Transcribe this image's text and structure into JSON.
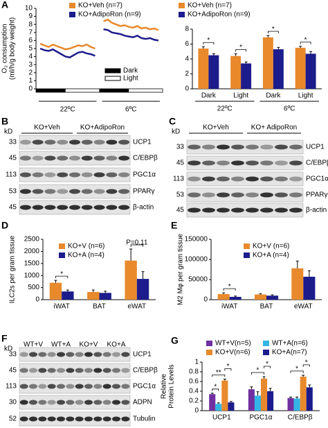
{
  "chart_data": [
    {
      "panel": "A",
      "type": "line",
      "ylabel": [
        "O₂ consumption",
        "(ml/h/g body weight)"
      ],
      "xlim": [
        0,
        30
      ],
      "ylim": [
        0,
        10
      ],
      "yticks": [
        0,
        1,
        2,
        3,
        4,
        5,
        6,
        7,
        8,
        9,
        10
      ],
      "x": [
        1,
        2,
        3,
        4,
        5,
        6,
        7,
        8,
        9,
        10,
        11,
        12,
        13,
        14,
        15,
        16,
        17,
        18,
        19,
        20,
        21,
        22,
        23,
        24,
        25,
        26,
        27,
        28,
        29
      ],
      "series": [
        {
          "name": "KO+Veh (n=7)",
          "color": "#e8892c",
          "values": [
            5.6,
            5.4,
            5.2,
            5.5,
            5.3,
            5.1,
            4.9,
            5.0,
            5.2,
            5.4,
            5.3,
            5.5,
            5.2,
            5.0,
            null,
            8.4,
            8.6,
            8.2,
            8.0,
            7.8,
            7.9,
            7.7,
            7.6,
            7.8,
            7.5,
            7.6,
            7.4,
            7.5,
            7.3
          ]
        },
        {
          "name": "KO+AdipoRon (n=9)",
          "color": "#1c1c8c",
          "values": [
            5.0,
            4.8,
            4.7,
            4.9,
            4.6,
            4.3,
            4.0,
            3.9,
            4.2,
            4.5,
            4.6,
            4.4,
            4.3,
            4.1,
            null,
            7.4,
            7.3,
            7.0,
            6.9,
            6.8,
            6.6,
            6.5,
            6.4,
            6.6,
            6.3,
            6.2,
            6.3,
            6.1,
            6.0
          ]
        }
      ],
      "phase_labels": [
        "Dark",
        "Light"
      ],
      "dark_periods": [
        [
          0,
          7
        ],
        [
          15,
          22
        ]
      ],
      "segments": [
        {
          "label": "22ºC",
          "start": 0,
          "end": 15
        },
        {
          "label": "6ºC",
          "start": 15,
          "end": 30
        }
      ]
    },
    {
      "type": "bar",
      "ylim": [
        0,
        8
      ],
      "yticks": [
        0,
        2,
        4,
        6,
        8
      ],
      "categories": [
        "Dark",
        "Light",
        "Dark",
        "Light"
      ],
      "groups": [
        {
          "label": "22ºC",
          "categories": [
            0,
            1
          ]
        },
        {
          "label": "6ºC",
          "categories": [
            2,
            3
          ]
        }
      ],
      "series": [
        {
          "name": "KO+Veh (n=7)",
          "color": "#e8892c",
          "values": [
            5.4,
            4.4,
            6.9,
            5.5
          ],
          "errors": [
            0.25,
            0.3,
            0.25,
            0.2
          ]
        },
        {
          "name": "KO+AdipoRon (n=9)",
          "color": "#1c1c8c",
          "values": [
            4.5,
            3.4,
            5.3,
            4.7
          ],
          "errors": [
            0.2,
            0.2,
            0.25,
            0.3
          ]
        }
      ],
      "annotations": [
        {
          "text": "*",
          "category": 0,
          "series": [
            0,
            1
          ]
        },
        {
          "text": "*",
          "category": 1,
          "series": [
            0,
            1
          ]
        },
        {
          "text": "*",
          "category": 2,
          "series": [
            0,
            1
          ]
        },
        {
          "text": "*",
          "category": 3,
          "series": [
            0,
            1
          ]
        }
      ]
    },
    {
      "panel": "D",
      "type": "bar",
      "ylabel": [
        "ILC2s per gram tissue"
      ],
      "ylim": [
        0,
        2500
      ],
      "yticks": [
        0,
        500,
        1000,
        1500,
        2000,
        2500
      ],
      "categories": [
        "iWAT",
        "BAT",
        "eWAT"
      ],
      "series": [
        {
          "name": "KO+V (n=6)",
          "color": "#e8892c",
          "values": [
            700,
            320,
            1620
          ],
          "errors": [
            100,
            80,
            480
          ]
        },
        {
          "name": "KO+A (n=4)",
          "color": "#1c1c8c",
          "values": [
            340,
            280,
            860
          ],
          "errors": [
            60,
            70,
            300
          ]
        }
      ],
      "annotations": [
        {
          "text": "*",
          "category": 0,
          "series": [
            0,
            1
          ]
        },
        {
          "text": "P=0.11",
          "category": 2,
          "series": [
            0,
            1
          ]
        }
      ]
    },
    {
      "panel": "E",
      "type": "bar",
      "ylabel": [
        "M2 Mφ per gram tissue"
      ],
      "ylim": [
        0,
        150000
      ],
      "yticks": [
        0,
        50000,
        100000,
        150000
      ],
      "categories": [
        "iWAT",
        "BAT",
        "eWAT"
      ],
      "series": [
        {
          "name": "KO+V (n=6)",
          "color": "#e8892c",
          "values": [
            14000,
            13000,
            78000
          ],
          "errors": [
            3000,
            2000,
            18000
          ]
        },
        {
          "name": "KO+A (n=4)",
          "color": "#1c1c8c",
          "values": [
            7000,
            10000,
            57000
          ],
          "errors": [
            2000,
            2000,
            15000
          ]
        }
      ],
      "annotations": [
        {
          "text": "*",
          "category": 0,
          "series": [
            0,
            1
          ]
        }
      ]
    },
    {
      "panel": "G",
      "type": "bar",
      "ylabel": [
        "Relative",
        "Protein Levels"
      ],
      "ylim": [
        0,
        1
      ],
      "yticks": [
        0,
        0.2,
        0.4,
        0.6,
        0.8,
        1
      ],
      "categories": [
        "UCP1",
        "PGC1α",
        "C/EBPβ"
      ],
      "series": [
        {
          "name": "WT+V(n=5)",
          "color": "#7030a0",
          "values": [
            0.34,
            0.44,
            0.26
          ],
          "errors": [
            0.02,
            0.05,
            0.02
          ]
        },
        {
          "name": "WT+A(n=6)",
          "color": "#33b5e5",
          "values": [
            0.14,
            0.31,
            0.25
          ],
          "errors": [
            0.02,
            0.08,
            0.03
          ]
        },
        {
          "name": "KO+V(n=6)",
          "color": "#e8892c",
          "values": [
            0.62,
            0.66,
            0.7
          ],
          "errors": [
            0.03,
            0.04,
            0.03
          ]
        },
        {
          "name": "KO+A(n=7)",
          "color": "#1c1c8c",
          "values": [
            0.17,
            0.4,
            0.48
          ],
          "errors": [
            0.02,
            0.06,
            0.05
          ]
        }
      ],
      "annotations": [
        {
          "text": "*",
          "category": 0,
          "series": [
            0,
            1
          ]
        },
        {
          "text": "**",
          "category": 0,
          "series": [
            0,
            2
          ]
        },
        {
          "text": "*",
          "category": 0,
          "series": [
            2,
            3
          ]
        },
        {
          "text": "*",
          "category": 1,
          "series": [
            0,
            2
          ]
        },
        {
          "text": "*",
          "category": 1,
          "series": [
            2,
            3
          ]
        },
        {
          "text": "*",
          "category": 2,
          "series": [
            0,
            2
          ]
        },
        {
          "text": "*",
          "category": 2,
          "series": [
            2,
            3
          ]
        }
      ]
    }
  ],
  "blots": [
    {
      "panel": "B",
      "kd_label": "kD",
      "groups": [
        "KO+Veh",
        "KO+AdipoRon"
      ],
      "rows": [
        {
          "kd": 33,
          "protein": "UCP1"
        },
        {
          "kd": 45,
          "protein": "C/EBPβ"
        },
        {
          "kd": 113,
          "protein": "PGC1α"
        },
        {
          "kd": 53,
          "protein": "PPARγ"
        },
        {
          "kd": 45,
          "protein": "β-actin"
        }
      ]
    },
    {
      "panel": "C",
      "kd_label": "kD",
      "groups": [
        "KO+Veh",
        "KO+ AdipoRon"
      ],
      "rows": [
        {
          "kd": 33,
          "protein": "UCP1"
        },
        {
          "kd": 45,
          "protein": "C/EBPβ"
        },
        {
          "kd": 113,
          "protein": "PGC1α"
        },
        {
          "kd": 53,
          "protein": "PPARγ"
        },
        {
          "kd": 45,
          "protein": "β-actin"
        }
      ]
    },
    {
      "panel": "F",
      "kd_label": "kD",
      "groups": [
        "WT+V",
        "WT+A",
        "KO+V",
        "KO+A"
      ],
      "rows": [
        {
          "kd": 33,
          "protein": "UCP1"
        },
        {
          "kd": 45,
          "protein": "C/EBPβ"
        },
        {
          "kd": 113,
          "protein": "PGC1α"
        },
        {
          "kd": 30,
          "protein": "ADPN"
        },
        {
          "kd": 52,
          "protein": "Tubulin"
        }
      ]
    }
  ]
}
